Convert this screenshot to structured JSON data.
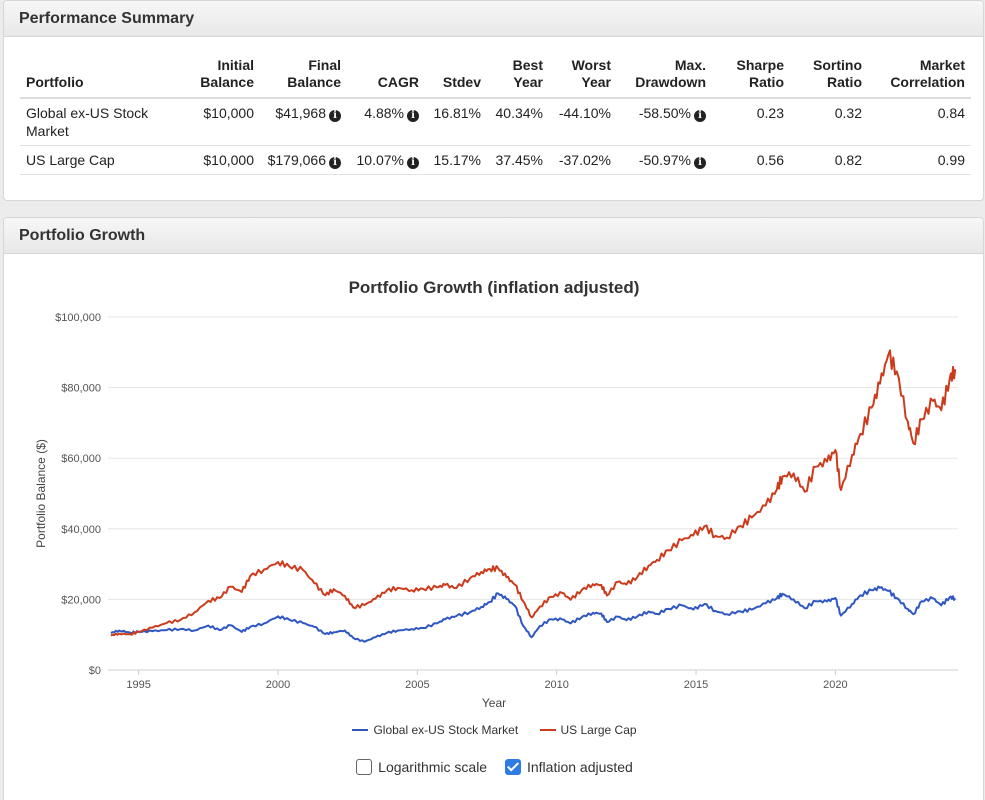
{
  "summary": {
    "title": "Performance Summary",
    "columns": [
      [
        "Portfolio"
      ],
      [
        "Initial",
        "Balance"
      ],
      [
        "Final",
        "Balance"
      ],
      [
        "CAGR"
      ],
      [
        "Stdev"
      ],
      [
        "Best",
        "Year"
      ],
      [
        "Worst",
        "Year"
      ],
      [
        "Max.",
        "Drawdown"
      ],
      [
        "Sharpe",
        "Ratio"
      ],
      [
        "Sortino",
        "Ratio"
      ],
      [
        "Market",
        "Correlation"
      ]
    ],
    "rows": [
      {
        "portfolio": "Global ex-US Stock Market",
        "initial": "$10,000",
        "final": "$41,968",
        "cagr": "4.88%",
        "stdev": "16.81%",
        "best": "40.34%",
        "worst": "-44.10%",
        "drawdown": "-58.50%",
        "sharpe": "0.23",
        "sortino": "0.32",
        "correlation": "0.84"
      },
      {
        "portfolio": "US Large Cap",
        "initial": "$10,000",
        "final": "$179,066",
        "cagr": "10.07%",
        "stdev": "15.17%",
        "best": "37.45%",
        "worst": "-37.02%",
        "drawdown": "-50.97%",
        "sharpe": "0.56",
        "sortino": "0.82",
        "correlation": "0.99"
      }
    ]
  },
  "growth": {
    "title": "Portfolio Growth",
    "options": {
      "log_scale_label": "Logarithmic scale",
      "log_scale_checked": false,
      "inflation_label": "Inflation adjusted",
      "inflation_checked": true
    }
  },
  "chart_data": {
    "type": "line",
    "title": "Portfolio Growth (inflation adjusted)",
    "xlabel": "Year",
    "ylabel": "Portfolio Balance ($)",
    "xlim": [
      1993.9,
      2024.4
    ],
    "ylim": [
      0,
      100000
    ],
    "x_ticks": [
      1995,
      2000,
      2005,
      2010,
      2015,
      2020
    ],
    "y_ticks": [
      {
        "value": 0,
        "label": "$0"
      },
      {
        "value": 20000,
        "label": "$20,000"
      },
      {
        "value": 40000,
        "label": "$40,000"
      },
      {
        "value": 60000,
        "label": "$60,000"
      },
      {
        "value": 80000,
        "label": "$80,000"
      },
      {
        "value": 100000,
        "label": "$100,000"
      }
    ],
    "grid": true,
    "legend_position": "bottom",
    "series": [
      {
        "name": "Global ex-US Stock Market",
        "color": "#2f57c2",
        "points": [
          [
            1994.0,
            10500
          ],
          [
            1994.3,
            11200
          ],
          [
            1994.7,
            10600
          ],
          [
            1995.0,
            10800
          ],
          [
            1995.5,
            11000
          ],
          [
            1996.0,
            11300
          ],
          [
            1996.5,
            11600
          ],
          [
            1997.0,
            11200
          ],
          [
            1997.5,
            12600
          ],
          [
            1997.9,
            11300
          ],
          [
            1998.3,
            12700
          ],
          [
            1998.7,
            10800
          ],
          [
            1999.0,
            12200
          ],
          [
            1999.5,
            13200
          ],
          [
            2000.0,
            15200
          ],
          [
            2000.4,
            14300
          ],
          [
            2000.9,
            13300
          ],
          [
            2001.3,
            12200
          ],
          [
            2001.7,
            10200
          ],
          [
            2002.0,
            10700
          ],
          [
            2002.4,
            11200
          ],
          [
            2002.7,
            9100
          ],
          [
            2003.1,
            8000
          ],
          [
            2003.5,
            9300
          ],
          [
            2003.9,
            10500
          ],
          [
            2004.3,
            11200
          ],
          [
            2004.8,
            11600
          ],
          [
            2005.2,
            11900
          ],
          [
            2005.7,
            13200
          ],
          [
            2006.0,
            14400
          ],
          [
            2006.4,
            15300
          ],
          [
            2006.9,
            16400
          ],
          [
            2007.3,
            17900
          ],
          [
            2007.6,
            19300
          ],
          [
            2007.9,
            21700
          ],
          [
            2008.2,
            20100
          ],
          [
            2008.5,
            18200
          ],
          [
            2008.8,
            12500
          ],
          [
            2009.1,
            9300
          ],
          [
            2009.4,
            12500
          ],
          [
            2009.8,
            14400
          ],
          [
            2010.2,
            14300
          ],
          [
            2010.5,
            13200
          ],
          [
            2010.9,
            15000
          ],
          [
            2011.3,
            16200
          ],
          [
            2011.6,
            16000
          ],
          [
            2011.8,
            13600
          ],
          [
            2012.2,
            15100
          ],
          [
            2012.5,
            14100
          ],
          [
            2012.9,
            15200
          ],
          [
            2013.3,
            16600
          ],
          [
            2013.6,
            15900
          ],
          [
            2014.0,
            17300
          ],
          [
            2014.5,
            18300
          ],
          [
            2014.9,
            17100
          ],
          [
            2015.3,
            18700
          ],
          [
            2015.7,
            16700
          ],
          [
            2016.1,
            15800
          ],
          [
            2016.6,
            16600
          ],
          [
            2017.0,
            17100
          ],
          [
            2017.5,
            18900
          ],
          [
            2017.9,
            20300
          ],
          [
            2018.1,
            21600
          ],
          [
            2018.5,
            20000
          ],
          [
            2018.9,
            17500
          ],
          [
            2019.3,
            19500
          ],
          [
            2019.7,
            19400
          ],
          [
            2020.0,
            20400
          ],
          [
            2020.2,
            15400
          ],
          [
            2020.6,
            18700
          ],
          [
            2020.9,
            21200
          ],
          [
            2021.3,
            22600
          ],
          [
            2021.6,
            23300
          ],
          [
            2021.9,
            22400
          ],
          [
            2022.2,
            20400
          ],
          [
            2022.6,
            17300
          ],
          [
            2022.8,
            15800
          ],
          [
            2023.1,
            19500
          ],
          [
            2023.5,
            20300
          ],
          [
            2023.8,
            18300
          ],
          [
            2024.1,
            20600
          ],
          [
            2024.3,
            20300
          ]
        ]
      },
      {
        "name": "US Large Cap",
        "color": "#cc3c1c",
        "points": [
          [
            1994.0,
            9800
          ],
          [
            1994.3,
            10300
          ],
          [
            1994.7,
            10100
          ],
          [
            1995.0,
            10800
          ],
          [
            1995.5,
            12000
          ],
          [
            1996.0,
            13300
          ],
          [
            1996.5,
            14200
          ],
          [
            1997.0,
            16300
          ],
          [
            1997.5,
            19600
          ],
          [
            1997.9,
            20400
          ],
          [
            1998.3,
            23600
          ],
          [
            1998.7,
            22100
          ],
          [
            1999.0,
            26600
          ],
          [
            1999.5,
            28500
          ],
          [
            2000.0,
            30600
          ],
          [
            2000.4,
            29400
          ],
          [
            2000.9,
            28300
          ],
          [
            2001.3,
            24600
          ],
          [
            2001.7,
            21200
          ],
          [
            2002.0,
            22900
          ],
          [
            2002.4,
            21000
          ],
          [
            2002.7,
            17700
          ],
          [
            2003.1,
            18400
          ],
          [
            2003.5,
            20200
          ],
          [
            2003.9,
            22500
          ],
          [
            2004.3,
            23300
          ],
          [
            2004.8,
            22600
          ],
          [
            2005.2,
            23000
          ],
          [
            2005.7,
            23400
          ],
          [
            2006.0,
            24100
          ],
          [
            2006.4,
            23200
          ],
          [
            2006.9,
            26100
          ],
          [
            2007.3,
            27800
          ],
          [
            2007.6,
            28600
          ],
          [
            2007.9,
            28800
          ],
          [
            2008.2,
            26300
          ],
          [
            2008.5,
            24200
          ],
          [
            2008.8,
            19500
          ],
          [
            2009.1,
            14900
          ],
          [
            2009.4,
            18000
          ],
          [
            2009.8,
            20700
          ],
          [
            2010.2,
            21800
          ],
          [
            2010.5,
            19900
          ],
          [
            2010.9,
            22700
          ],
          [
            2011.3,
            24300
          ],
          [
            2011.6,
            24100
          ],
          [
            2011.8,
            21100
          ],
          [
            2012.2,
            25000
          ],
          [
            2012.5,
            24200
          ],
          [
            2012.9,
            26400
          ],
          [
            2013.3,
            29600
          ],
          [
            2013.6,
            31200
          ],
          [
            2014.0,
            33900
          ],
          [
            2014.5,
            36800
          ],
          [
            2014.9,
            38100
          ],
          [
            2015.3,
            40700
          ],
          [
            2015.7,
            38000
          ],
          [
            2016.1,
            37500
          ],
          [
            2016.6,
            40800
          ],
          [
            2017.0,
            43200
          ],
          [
            2017.5,
            46600
          ],
          [
            2017.9,
            51200
          ],
          [
            2018.1,
            54800
          ],
          [
            2018.5,
            55700
          ],
          [
            2018.9,
            50500
          ],
          [
            2019.3,
            57600
          ],
          [
            2019.7,
            59000
          ],
          [
            2020.0,
            62300
          ],
          [
            2020.2,
            51000
          ],
          [
            2020.6,
            60900
          ],
          [
            2020.9,
            66900
          ],
          [
            2021.3,
            74300
          ],
          [
            2021.6,
            81100
          ],
          [
            2021.9,
            89300
          ],
          [
            2022.2,
            84600
          ],
          [
            2022.6,
            70400
          ],
          [
            2022.8,
            64200
          ],
          [
            2023.1,
            71000
          ],
          [
            2023.5,
            76200
          ],
          [
            2023.8,
            73600
          ],
          [
            2024.1,
            82300
          ],
          [
            2024.3,
            85200
          ]
        ]
      }
    ]
  }
}
